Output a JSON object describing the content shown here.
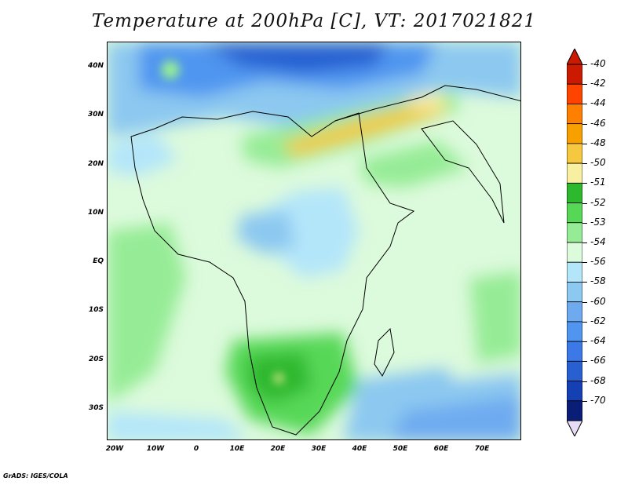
{
  "title": "Temperature at 200hPa [C], VT: 2017021821",
  "footer": "GrADS: IGES/COLA",
  "map": {
    "lat_labels": [
      "40N",
      "30N",
      "20N",
      "10N",
      "EQ",
      "10S",
      "20S",
      "30S"
    ],
    "lon_labels": [
      "20W",
      "10W",
      "0",
      "10E",
      "20E",
      "30E",
      "40E",
      "50E",
      "60E",
      "70E"
    ]
  },
  "colorbar": {
    "labels": [
      "-40",
      "-42",
      "-44",
      "-46",
      "-48",
      "-50",
      "-51",
      "-52",
      "-53",
      "-54",
      "-56",
      "-58",
      "-60",
      "-62",
      "-64",
      "-66",
      "-68",
      "-70"
    ],
    "colors": [
      "#cc1a00",
      "#ff4400",
      "#ff8000",
      "#f8a000",
      "#f5c840",
      "#f8f0a0",
      "#2db82d",
      "#56d856",
      "#96ec96",
      "#dcfadc",
      "#b4e6fa",
      "#8cc8f0",
      "#6eaaf0",
      "#5096f0",
      "#3c78e6",
      "#2860d2",
      "#1440b4",
      "#0a1e78"
    ]
  }
}
